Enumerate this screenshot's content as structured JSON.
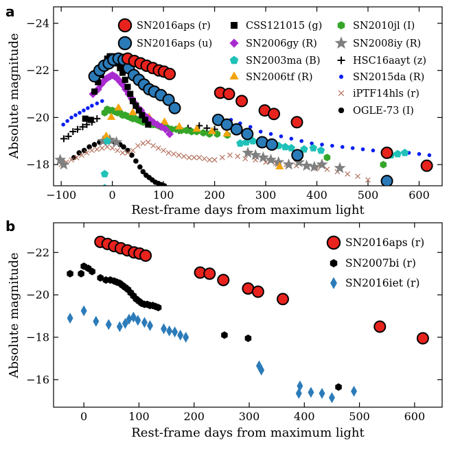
{
  "chart_data": [
    {
      "panel": "a",
      "type": "scatter",
      "xlabel": "Rest-frame days from maximum light",
      "ylabel": "Absolute magnitude",
      "xlim": [
        -115,
        645
      ],
      "ylim": [
        -17.1,
        -24.7
      ],
      "y_inverted": true,
      "xticks": [
        -100,
        0,
        100,
        200,
        300,
        400,
        500,
        600
      ],
      "yticks": [
        -24,
        -22,
        -20,
        -18
      ],
      "legend_location": "top-right, three columns",
      "series": [
        {
          "name": "SN2016aps (r)",
          "color": "#e8231e",
          "marker": "circle-large",
          "x": [
            30,
            43,
            55,
            67,
            79,
            91,
            101,
            112,
            211,
            228,
            253,
            298,
            316,
            361,
            537,
            615
          ],
          "y": [
            -22.5,
            -22.4,
            -22.3,
            -22.2,
            -22.1,
            -22.0,
            -21.95,
            -21.85,
            -21.05,
            -21.0,
            -20.7,
            -20.3,
            -20.15,
            -19.8,
            -18.5,
            -17.95
          ]
        },
        {
          "name": "SN2016aps (u)",
          "color": "#2b7bb9",
          "marker": "circle-large",
          "x": [
            -35,
            -25,
            -16,
            -7,
            2,
            12,
            22,
            32,
            42,
            52,
            62,
            72,
            82,
            95,
            110,
            122,
            207,
            224,
            243,
            264,
            293,
            312,
            362,
            537
          ],
          "y": [
            -21.75,
            -22.0,
            -22.2,
            -22.3,
            -22.45,
            -22.5,
            -22.45,
            -22.1,
            -21.8,
            -21.6,
            -21.4,
            -21.2,
            -21.1,
            -20.95,
            -20.75,
            -20.4,
            -19.9,
            -19.7,
            -19.5,
            -19.3,
            -18.95,
            -18.85,
            -18.4,
            -17.3
          ]
        },
        {
          "name": "CSS121015 (g)",
          "color": "#000000",
          "marker": "square",
          "x": [
            -53,
            -42,
            -35,
            -28,
            -22,
            -18,
            -14,
            -10,
            -5,
            0,
            5,
            10,
            15,
            20,
            25,
            30,
            35,
            40,
            46,
            52,
            58,
            64,
            70
          ],
          "y": [
            -19.95,
            -19.9,
            -21.1,
            -21.5,
            -21.8,
            -22.1,
            -22.3,
            -22.5,
            -22.6,
            -22.6,
            -22.5,
            -22.3,
            -22.1,
            -21.9,
            -21.6,
            -21.3,
            -21.0,
            -20.7,
            -20.5,
            -20.3,
            -20.1,
            -19.9,
            -19.7
          ]
        },
        {
          "name": "SN2006gy (R)",
          "color": "#a92bd0",
          "marker": "diamond",
          "x": [
            -38,
            -28,
            -22,
            -16,
            -12,
            -8,
            -4,
            0,
            4,
            8,
            12,
            16,
            20,
            26,
            32,
            38,
            44,
            50,
            56,
            62,
            68,
            74,
            80,
            88,
            96,
            104,
            112
          ],
          "y": [
            -21.0,
            -21.2,
            -21.4,
            -21.55,
            -21.65,
            -21.7,
            -21.75,
            -21.8,
            -21.75,
            -21.7,
            -21.6,
            -21.5,
            -21.4,
            -21.2,
            -21.0,
            -20.8,
            -20.6,
            -20.4,
            -20.3,
            -20.1,
            -20.0,
            -19.9,
            -19.8,
            -19.7,
            -19.6,
            -19.5,
            -19.3
          ]
        },
        {
          "name": "SN2003ma (B)",
          "color": "#1fc1b8",
          "marker": "pentagon",
          "x": [
            -15,
            -15,
            -10,
            250,
            262,
            275,
            288,
            300,
            312,
            325,
            338,
            350,
            375,
            393,
            408,
            532,
            545,
            558,
            572
          ],
          "y": [
            -17.6,
            -17.0,
            -19.0,
            -18.9,
            -18.95,
            -19.0,
            -18.9,
            -18.95,
            -18.9,
            -18.8,
            -18.75,
            -18.7,
            -18.65,
            -18.7,
            -18.6,
            -18.5,
            -18.4,
            -18.45,
            -18.5
          ]
        },
        {
          "name": "SN2006tf (R)",
          "color": "#f5a30b",
          "marker": "triangle",
          "x": [
            -12,
            -2,
            12,
            40,
            72,
            102,
            131,
            165,
            195,
            224,
            327
          ],
          "y": [
            -19.2,
            -20.0,
            -20.4,
            -20.2,
            -20.0,
            -19.8,
            -19.6,
            -19.5,
            -19.4,
            -19.3,
            -17.9
          ]
        },
        {
          "name": "SN2010jl (I)",
          "color": "#35a629",
          "marker": "hexagon",
          "x": [
            -15,
            -10,
            -5,
            0,
            5,
            10,
            15,
            20,
            25,
            30,
            35,
            40,
            45,
            50,
            55,
            60,
            65,
            70,
            75,
            80,
            85,
            90,
            95,
            100,
            108,
            116,
            125,
            135,
            145,
            155,
            165,
            178,
            190,
            205,
            225,
            420,
            530
          ],
          "y": [
            -20.2,
            -20.35,
            -20.3,
            -20.3,
            -20.25,
            -20.2,
            -20.2,
            -20.1,
            -20.1,
            -20.05,
            -20.0,
            -19.95,
            -19.95,
            -19.9,
            -19.85,
            -19.8,
            -19.8,
            -19.75,
            -19.7,
            -19.7,
            -19.7,
            -19.65,
            -19.6,
            -19.6,
            -19.55,
            -19.5,
            -19.5,
            -19.45,
            -19.45,
            -19.4,
            -19.4,
            -19.35,
            -19.3,
            -19.3,
            -19.25,
            -18.3,
            -18.0
          ]
        },
        {
          "name": "SN2008iy (R)",
          "color": "#7f7f7f",
          "marker": "star",
          "x": [
            -102,
            -95,
            -18,
            -5,
            8,
            265,
            280,
            295,
            310,
            325,
            345,
            365,
            380,
            395,
            410,
            445
          ],
          "y": [
            -18.2,
            -18.0,
            -19.0,
            -19.05,
            -18.95,
            -18.5,
            -18.4,
            -18.3,
            -18.2,
            -18.1,
            -18.0,
            -18.1,
            -17.95,
            -17.9,
            -18.0,
            -17.85
          ]
        },
        {
          "name": "HSC16aayt (z)",
          "color": "#000000",
          "marker": "plus",
          "x": [
            -95,
            -86,
            -77,
            -68,
            -58,
            -50,
            -40,
            -30,
            130,
            148,
            170,
            185,
            200
          ],
          "y": [
            -19.1,
            -19.2,
            -19.4,
            -19.5,
            -19.6,
            -19.7,
            -19.8,
            -19.95,
            -19.45,
            -19.55,
            -19.65,
            -19.55,
            -19.5
          ]
        },
        {
          "name": "SN2015da (R)",
          "color": "#0a1ff2",
          "marker": "dot",
          "x": [
            -96,
            -88,
            -80,
            -72,
            -64,
            -56,
            -48,
            -40,
            -30,
            -20,
            232,
            250,
            270,
            290,
            310,
            330,
            350,
            370,
            390,
            410,
            430,
            450,
            470,
            490,
            510,
            540,
            560,
            580,
            600,
            620
          ],
          "y": [
            -19.7,
            -19.85,
            -20.0,
            -20.1,
            -20.2,
            -20.3,
            -20.4,
            -20.5,
            -20.6,
            -20.7,
            -19.9,
            -19.75,
            -19.6,
            -19.4,
            -19.3,
            -19.2,
            -19.1,
            -19.0,
            -18.9,
            -18.85,
            -18.8,
            -18.75,
            -18.7,
            -18.65,
            -18.6,
            -18.55,
            -18.5,
            -18.5,
            -18.45,
            -18.4
          ]
        },
        {
          "name": "iPTF14hls (r)",
          "color": "#b36f5c",
          "marker": "x",
          "x": [
            -100,
            -90,
            -80,
            -70,
            -60,
            -50,
            -40,
            -30,
            -20,
            -10,
            0,
            10,
            20,
            30,
            40,
            50,
            60,
            70,
            80,
            90,
            100,
            110,
            120,
            130,
            140,
            150,
            160,
            170,
            180,
            190,
            200,
            215,
            230,
            245,
            260,
            280,
            300,
            320,
            340,
            360,
            380,
            400,
            420,
            440,
            460,
            480,
            500
          ],
          "y": [
            -18.0,
            -18.1,
            -18.2,
            -18.3,
            -18.4,
            -18.5,
            -18.6,
            -18.65,
            -18.7,
            -18.75,
            -18.7,
            -18.6,
            -18.5,
            -18.5,
            -18.6,
            -18.8,
            -18.9,
            -18.95,
            -18.8,
            -18.7,
            -18.6,
            -18.5,
            -18.45,
            -18.4,
            -18.35,
            -18.3,
            -18.3,
            -18.3,
            -18.25,
            -18.2,
            -18.2,
            -18.3,
            -18.4,
            -18.35,
            -18.25,
            -18.2,
            -18.1,
            -18.05,
            -18.0,
            -17.95,
            -17.9,
            -17.85,
            -17.8,
            -17.7,
            -17.6,
            -17.5,
            -17.35
          ]
        },
        {
          "name": "OGLE-73 (I)",
          "color": "#000000",
          "marker": "dot-large",
          "x": [
            -75,
            -65,
            -55,
            -45,
            -35,
            -25,
            -15,
            -5,
            5,
            15,
            22,
            30,
            38,
            46,
            54,
            60,
            66,
            72,
            78,
            84,
            90,
            96,
            102
          ],
          "y": [
            -18.3,
            -18.5,
            -18.6,
            -18.75,
            -18.85,
            -18.95,
            -19.0,
            -19.0,
            -18.95,
            -18.85,
            -18.75,
            -18.6,
            -18.4,
            -18.15,
            -17.9,
            -17.7,
            -17.55,
            -17.45,
            -17.35,
            -17.25,
            -17.2,
            -17.15,
            -17.1
          ]
        }
      ]
    },
    {
      "panel": "b",
      "type": "scatter",
      "xlabel": "Rest-frame days from maximum light",
      "ylabel": "Absolute magnitude",
      "xlim": [
        -55,
        650
      ],
      "ylim": [
        -14.7,
        -23.4
      ],
      "y_inverted": true,
      "xticks": [
        0,
        100,
        200,
        300,
        400,
        500,
        600
      ],
      "yticks": [
        -22,
        -20,
        -18,
        -16
      ],
      "legend_location": "top-right",
      "series": [
        {
          "name": "SN2016aps (r)",
          "color": "#e8231e",
          "marker": "circle-large",
          "x": [
            30,
            43,
            55,
            67,
            79,
            91,
            101,
            112,
            211,
            228,
            253,
            298,
            316,
            361,
            537,
            615
          ],
          "y": [
            -22.5,
            -22.4,
            -22.3,
            -22.2,
            -22.1,
            -22.0,
            -21.95,
            -21.85,
            -21.05,
            -21.0,
            -20.7,
            -20.3,
            -20.15,
            -19.8,
            -18.5,
            -17.95
          ]
        },
        {
          "name": "SN2007bi (r)",
          "color": "#000000",
          "marker": "hexagon",
          "x": [
            -25,
            -5,
            0,
            8,
            15,
            30,
            40,
            48,
            55,
            60,
            65,
            70,
            75,
            80,
            85,
            90,
            95,
            100,
            105,
            110,
            115,
            120,
            125,
            130,
            135,
            255,
            298,
            462
          ],
          "y": [
            -21.0,
            -21.0,
            -21.35,
            -21.25,
            -21.1,
            -20.8,
            -20.7,
            -20.7,
            -20.65,
            -20.6,
            -20.55,
            -20.45,
            -20.35,
            -20.25,
            -20.1,
            -19.95,
            -19.8,
            -19.7,
            -19.6,
            -19.55,
            -19.55,
            -19.5,
            -19.5,
            -19.45,
            -19.4,
            -18.1,
            -17.95,
            -15.65
          ]
        },
        {
          "name": "SN2016iet (r)",
          "color": "#2b7bb9",
          "marker": "thin-diamond",
          "x": [
            -25,
            0,
            22,
            45,
            65,
            75,
            82,
            90,
            98,
            110,
            120,
            145,
            155,
            165,
            175,
            185,
            318,
            322,
            390,
            392,
            412,
            432,
            450,
            490
          ],
          "y": [
            -18.9,
            -19.25,
            -18.75,
            -18.6,
            -18.5,
            -18.65,
            -18.85,
            -18.95,
            -18.8,
            -18.7,
            -18.55,
            -18.4,
            -18.3,
            -18.25,
            -18.1,
            -18.0,
            -16.65,
            -16.45,
            -15.35,
            -15.7,
            -15.4,
            -15.35,
            -15.15,
            -15.45
          ]
        }
      ]
    }
  ]
}
